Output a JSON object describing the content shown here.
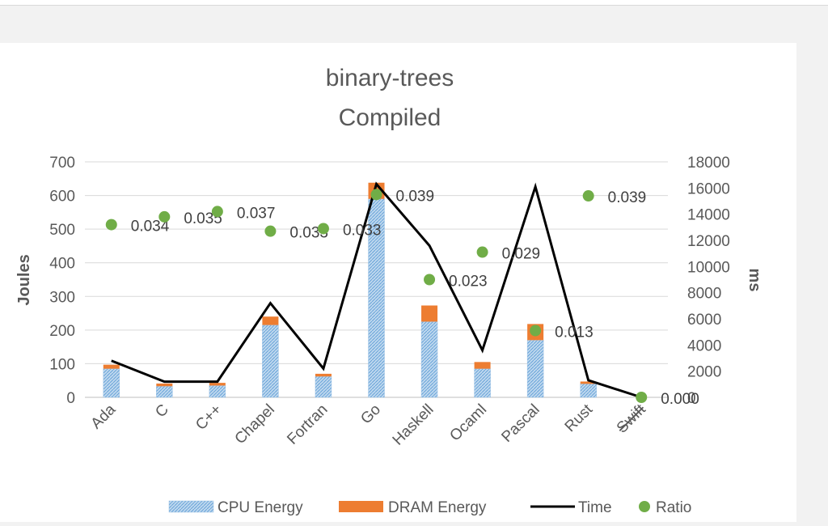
{
  "page": {
    "top_caption": ""
  },
  "chart_data": {
    "type": "bar",
    "title_line1": "binary-trees",
    "title_line2": "Compiled",
    "ylabel": "Joules",
    "y2label": "ms",
    "ylim": [
      0,
      700
    ],
    "y_ticks": [
      "0",
      "100",
      "200",
      "300",
      "400",
      "500",
      "600",
      "700"
    ],
    "y2lim": [
      0,
      18000
    ],
    "y2_ticks": [
      "0",
      "2000",
      "4000",
      "6000",
      "8000",
      "10000",
      "12000",
      "14000",
      "16000",
      "18000"
    ],
    "categories": [
      "Ada",
      "C",
      "C++",
      "Chapel",
      "Fortran",
      "Go",
      "Haskell",
      "Ocaml",
      "Pascal",
      "Rust",
      "Swift"
    ],
    "struck_categories": [
      "Swift"
    ],
    "series": [
      {
        "name": "CPU Energy",
        "type": "bar",
        "axis": "left",
        "color": "#9dc3e6",
        "values": [
          85,
          33,
          35,
          215,
          62,
          590,
          225,
          85,
          170,
          40,
          0
        ]
      },
      {
        "name": "DRAM Energy",
        "type": "bar",
        "axis": "left",
        "color": "#ed7d31",
        "values": [
          12,
          8,
          8,
          25,
          8,
          48,
          48,
          20,
          48,
          7,
          0
        ]
      },
      {
        "name": "Time",
        "type": "line",
        "axis": "right",
        "color": "#000000",
        "values": [
          2800,
          1200,
          1200,
          7200,
          2200,
          16300,
          11600,
          3600,
          16100,
          1300,
          0
        ]
      },
      {
        "name": "Ratio",
        "type": "scatter",
        "axis": "right",
        "color": "#70ad47",
        "values": [
          13200,
          13800,
          14200,
          12700,
          12900,
          15500,
          9000,
          11100,
          5100,
          15400,
          0
        ]
      }
    ],
    "ratio_labels": [
      "0.034",
      "0.035",
      "0.037",
      "0.033",
      "0.033",
      "0.039",
      "0.023",
      "0.029",
      "0.013",
      "0.039",
      "0.000"
    ],
    "legend": [
      "CPU Energy",
      "DRAM Energy",
      "Time",
      "Ratio"
    ],
    "legend_position": "bottom",
    "grid": true
  }
}
